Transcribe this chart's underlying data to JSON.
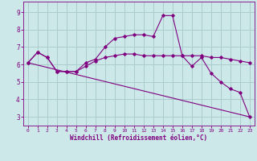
{
  "xlabel": "Windchill (Refroidissement éolien,°C)",
  "bg_color": "#cce8e8",
  "line_color": "#800080",
  "grid_color": "#aacccc",
  "x_ticks": [
    0,
    1,
    2,
    3,
    4,
    5,
    6,
    7,
    8,
    9,
    10,
    11,
    12,
    13,
    14,
    15,
    16,
    17,
    18,
    19,
    20,
    21,
    22,
    23
  ],
  "y_ticks": [
    3,
    4,
    5,
    6,
    7,
    8,
    9
  ],
  "ylim": [
    2.5,
    9.6
  ],
  "xlim": [
    -0.5,
    23.5
  ],
  "line1_x": [
    0,
    1,
    2,
    3,
    4,
    5,
    6,
    7,
    8,
    9,
    10,
    11,
    12,
    13,
    14,
    15,
    16,
    17,
    18,
    19,
    20,
    21,
    22,
    23
  ],
  "line1_y": [
    6.1,
    6.7,
    6.4,
    5.6,
    5.6,
    5.6,
    5.9,
    6.2,
    6.4,
    6.5,
    6.6,
    6.6,
    6.5,
    6.5,
    6.5,
    6.5,
    6.5,
    6.5,
    6.5,
    6.4,
    6.4,
    6.3,
    6.2,
    6.1
  ],
  "line2_x": [
    0,
    1,
    2,
    3,
    4,
    5,
    6,
    7,
    8,
    9,
    10,
    11,
    12,
    13,
    14,
    15,
    16,
    17,
    18,
    19,
    20,
    21,
    22,
    23
  ],
  "line2_y": [
    6.1,
    6.7,
    6.4,
    5.6,
    5.6,
    5.6,
    6.1,
    6.3,
    7.0,
    7.5,
    7.6,
    7.7,
    7.7,
    7.6,
    8.8,
    8.8,
    6.5,
    5.9,
    6.4,
    5.5,
    5.0,
    4.6,
    4.4,
    3.0
  ],
  "line3_x": [
    0,
    23
  ],
  "line3_y": [
    6.1,
    3.0
  ]
}
